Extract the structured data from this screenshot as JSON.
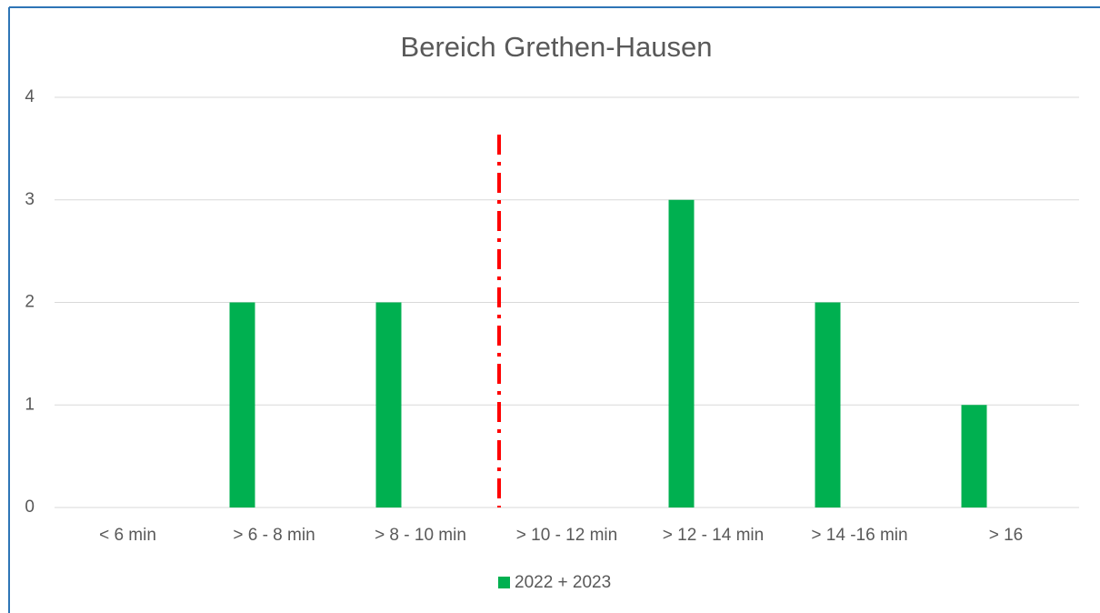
{
  "chart_data": {
    "type": "bar",
    "title": "Bereich Grethen-Hausen",
    "categories": [
      "< 6 min",
      "> 6 - 8 min",
      "> 8 - 10 min",
      "> 10 - 12 min",
      "> 12 - 14 min",
      "> 14 -16 min",
      "> 16"
    ],
    "series": [
      {
        "name": "2022 + 2023",
        "color": "#00b050",
        "values": [
          0,
          2,
          2,
          0,
          3,
          2,
          1
        ]
      }
    ],
    "ylim": [
      0,
      4
    ],
    "yticks": [
      0,
      1,
      2,
      3,
      4
    ],
    "grid": true,
    "legend": "bottom"
  }
}
